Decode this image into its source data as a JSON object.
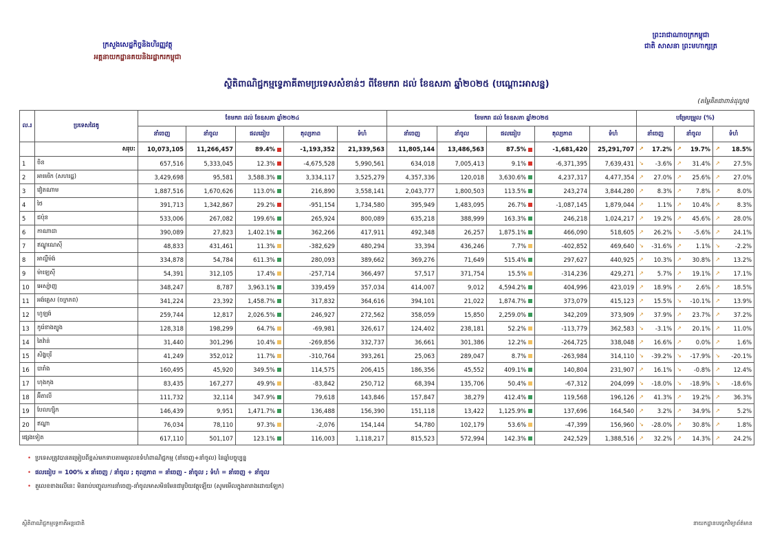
{
  "header": {
    "left": [
      "ក្រសួងសេដ្ឋកិច្ចនិងហិរញ្ញវត្ថុ",
      "អគ្គនាយកដ្ឋានគយនិងរដ្ឋាករកម្ពុជា"
    ],
    "right": [
      "ព្រះរាជាណាចក្រកម្ពុជា",
      "ជាតិ សាសនា ព្រះមហាក្សត្រ"
    ],
    "title": "ស្ថិតិពាណិជ្ជកម្មទ្វេភាគីតាមប្រទេសសំខាន់ៗ ពីខែមករា ដល់ ខែឧសភា ឆ្នាំ២០២៥ (បណ្ដោះអាសន្ន)",
    "unit": "(តម្លៃគិតជាពាន់ដុល្លារ)"
  },
  "table": {
    "col_no": "ល.រ",
    "col_country": "ប្រទេសដៃគូ",
    "groups": [
      "ខែមករា ដល់ ខែឧសភា ឆ្នាំ២០២៤",
      "ខែមករា ដល់ ខែឧសភា ឆ្នាំ២០២៥",
      "បម្រែបម្រួល (%)"
    ],
    "sub": [
      "នាំចេញ",
      "នាំចូល",
      "ផលធៀប",
      "តុល្យភាព",
      "ទំហំ",
      "នាំចេញ",
      "នាំចូល",
      "ផលធៀប",
      "តុល្យភាព",
      "ទំហំ",
      "នាំចេញ",
      "នាំចូល",
      "ទំហំ"
    ],
    "total": {
      "label": "សរុប:",
      "values": [
        "10,073,105",
        "11,266,457",
        "89.4%",
        "-1,193,352",
        "21,339,563",
        "11,805,144",
        "13,486,563",
        "87.5%",
        "-1,681,420",
        "25,291,707",
        "17.2%",
        "19.7%",
        "18.5%"
      ]
    },
    "rows": [
      {
        "no": "1",
        "country": "ចិន",
        "values": [
          "657,516",
          "5,333,045",
          "12.3%",
          "-4,675,528",
          "5,990,561",
          "634,018",
          "7,005,413",
          "9.1%",
          "-6,371,395",
          "7,639,431",
          "-3.6%",
          "31.4%",
          "27.5%"
        ]
      },
      {
        "no": "2",
        "country": "អាមេរិក (សហរដ្ឋ)",
        "values": [
          "3,429,698",
          "95,581",
          "3,588.3%",
          "3,334,117",
          "3,525,279",
          "4,357,336",
          "120,018",
          "3,630.6%",
          "4,237,317",
          "4,477,354",
          "27.0%",
          "25.6%",
          "27.0%"
        ]
      },
      {
        "no": "3",
        "country": "វៀតណាម",
        "values": [
          "1,887,516",
          "1,670,626",
          "113.0%",
          "216,890",
          "3,558,141",
          "2,043,777",
          "1,800,503",
          "113.5%",
          "243,274",
          "3,844,280",
          "8.3%",
          "7.8%",
          "8.0%"
        ]
      },
      {
        "no": "4",
        "country": "ថៃ",
        "values": [
          "391,713",
          "1,342,867",
          "29.2%",
          "-951,154",
          "1,734,580",
          "395,949",
          "1,483,095",
          "26.7%",
          "-1,087,145",
          "1,879,044",
          "1.1%",
          "10.4%",
          "8.3%"
        ]
      },
      {
        "no": "5",
        "country": "ជប៉ុន",
        "values": [
          "533,006",
          "267,082",
          "199.6%",
          "265,924",
          "800,089",
          "635,218",
          "388,999",
          "163.3%",
          "246,218",
          "1,024,217",
          "19.2%",
          "45.6%",
          "28.0%"
        ]
      },
      {
        "no": "6",
        "country": "កាណាដា",
        "values": [
          "390,089",
          "27,823",
          "1,402.1%",
          "362,266",
          "417,911",
          "492,348",
          "26,257",
          "1,875.1%",
          "466,090",
          "518,605",
          "26.2%",
          "-5.6%",
          "24.1%"
        ]
      },
      {
        "no": "7",
        "country": "ឥណ្ឌូណេស៊ី",
        "values": [
          "48,833",
          "431,461",
          "11.3%",
          "-382,629",
          "480,294",
          "33,394",
          "436,246",
          "7.7%",
          "-402,852",
          "469,640",
          "-31.6%",
          "1.1%",
          "-2.2%"
        ]
      },
      {
        "no": "8",
        "country": "អាល្លឺម៉ង់",
        "values": [
          "334,878",
          "54,784",
          "611.3%",
          "280,093",
          "389,662",
          "369,276",
          "71,649",
          "515.4%",
          "297,627",
          "440,925",
          "10.3%",
          "30.8%",
          "13.2%"
        ]
      },
      {
        "no": "9",
        "country": "ម៉ាឡេស៊ី",
        "values": [
          "54,391",
          "312,105",
          "17.4%",
          "-257,714",
          "366,497",
          "57,517",
          "371,754",
          "15.5%",
          "-314,236",
          "429,271",
          "5.7%",
          "19.1%",
          "17.1%"
        ]
      },
      {
        "no": "10",
        "country": "អេស្ប៉ាញ",
        "values": [
          "348,247",
          "8,787",
          "3,963.1%",
          "339,459",
          "357,034",
          "414,007",
          "9,012",
          "4,594.2%",
          "404,996",
          "423,019",
          "18.9%",
          "2.6%",
          "18.5%"
        ]
      },
      {
        "no": "11",
        "country": "អង់គ្លេស (ចក្រភព)",
        "values": [
          "341,224",
          "23,392",
          "1,458.7%",
          "317,832",
          "364,616",
          "394,101",
          "21,022",
          "1,874.7%",
          "373,079",
          "415,123",
          "15.5%",
          "-10.1%",
          "13.9%"
        ]
      },
      {
        "no": "12",
        "country": "ហូឡង់",
        "values": [
          "259,744",
          "12,817",
          "2,026.5%",
          "246,927",
          "272,562",
          "358,059",
          "15,850",
          "2,259.0%",
          "342,209",
          "373,909",
          "37.9%",
          "23.7%",
          "37.2%"
        ]
      },
      {
        "no": "13",
        "country": "កូរ៉េខាងត្បូង",
        "values": [
          "128,318",
          "198,299",
          "64.7%",
          "-69,981",
          "326,617",
          "124,402",
          "238,181",
          "52.2%",
          "-113,779",
          "362,583",
          "-3.1%",
          "20.1%",
          "11.0%"
        ]
      },
      {
        "no": "14",
        "country": "តៃវ៉ាន់",
        "values": [
          "31,440",
          "301,296",
          "10.4%",
          "-269,856",
          "332,737",
          "36,661",
          "301,386",
          "12.2%",
          "-264,725",
          "338,048",
          "16.6%",
          "0.0%",
          "1.6%"
        ]
      },
      {
        "no": "15",
        "country": "សិង្ហបុរី",
        "values": [
          "41,249",
          "352,012",
          "11.7%",
          "-310,764",
          "393,261",
          "25,063",
          "289,047",
          "8.7%",
          "-263,984",
          "314,110",
          "-39.2%",
          "-17.9%",
          "-20.1%"
        ]
      },
      {
        "no": "16",
        "country": "បារាំង",
        "values": [
          "160,495",
          "45,920",
          "349.5%",
          "114,575",
          "206,415",
          "186,356",
          "45,552",
          "409.1%",
          "140,804",
          "231,907",
          "16.1%",
          "-0.8%",
          "12.4%"
        ]
      },
      {
        "no": "17",
        "country": "ហុងកុង",
        "values": [
          "83,435",
          "167,277",
          "49.9%",
          "-83,842",
          "250,712",
          "68,394",
          "135,706",
          "50.4%",
          "-67,312",
          "204,099",
          "-18.0%",
          "-18.9%",
          "-18.6%"
        ]
      },
      {
        "no": "18",
        "country": "អ៊ីតាលី",
        "values": [
          "111,732",
          "32,114",
          "347.9%",
          "79,618",
          "143,846",
          "157,847",
          "38,279",
          "412.4%",
          "119,568",
          "196,126",
          "41.3%",
          "19.2%",
          "36.3%"
        ]
      },
      {
        "no": "19",
        "country": "បែលហ្ស៊ិក",
        "values": [
          "146,439",
          "9,951",
          "1,471.7%",
          "136,488",
          "156,390",
          "151,118",
          "13,422",
          "1,125.9%",
          "137,696",
          "164,540",
          "3.2%",
          "34.9%",
          "5.2%"
        ]
      },
      {
        "no": "20",
        "country": "ឥណ្ឌា",
        "values": [
          "76,034",
          "78,110",
          "97.3%",
          "-2,076",
          "154,144",
          "54,780",
          "102,179",
          "53.6%",
          "-47,399",
          "156,960",
          "-28.0%",
          "30.8%",
          "1.8%"
        ]
      }
    ],
    "others": {
      "label": "ផ្សេងទៀត",
      "values": [
        "617,110",
        "501,107",
        "123.1%",
        "116,003",
        "1,118,217",
        "815,523",
        "572,994",
        "142.3%",
        "242,529",
        "1,388,516",
        "32.2%",
        "14.3%",
        "24.2%"
      ]
    }
  },
  "notes": [
    "ប្រទេសត្រូវបានតម្រៀបពីខ្ពស់មកទាបតាមតួលេខទំហំពាណិជ្ជកម្ម (នាំចេញ+នាំចូល) នៃឆ្នាំបច្ចុប្បន្ន",
    "ផលធៀប = 100% x នាំចេញ / នាំចូល ; តុល្យភាព = នាំចេញ - នាំចូល ; ទំហំ = នាំចេញ + នាំចូល",
    "តួលេខខាងលើនេះ មិនរាប់បញ្ចូលការនាំចេញ-នាំចូលមាសមិនមែនជារូបិយវត្ថុឡើយ (សូមមើលក្នុងតារាងដោយឡែក)"
  ],
  "footer": {
    "left": "ស្ថិតិពាណិជ្ជកម្មទ្វេភាគីអន្តរជាតិ",
    "right": "នាយកដ្ឋានបច្ចេកវិទ្យាព័ត៌មាន"
  }
}
